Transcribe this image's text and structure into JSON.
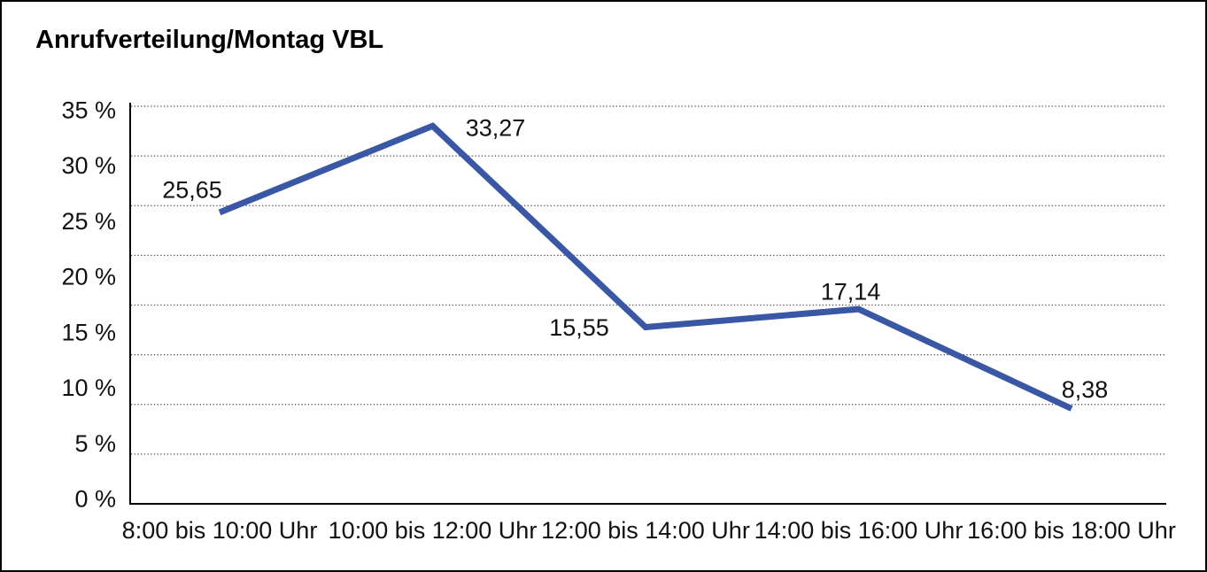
{
  "title": "Anrufverteilung/Montag VBL",
  "chart_data": {
    "type": "line",
    "title": "Anrufverteilung/Montag VBL",
    "categories": [
      "8:00 bis 10:00 Uhr",
      "10:00 bis 12:00 Uhr",
      "12:00 bis 14:00 Uhr",
      "14:00 bis 16:00 Uhr",
      "16:00 bis 18:00 Uhr"
    ],
    "values": [
      25.65,
      33.27,
      15.55,
      17.14,
      8.38
    ],
    "value_labels": [
      "25,65",
      "33,27",
      "15,55",
      "17,14",
      "8,38"
    ],
    "unit": "%",
    "ylim": [
      0,
      35
    ],
    "y_ticks": [
      {
        "value": 0,
        "label": "0 %"
      },
      {
        "value": 5,
        "label": "5 %"
      },
      {
        "value": 10,
        "label": "10 %"
      },
      {
        "value": 15,
        "label": "15 %"
      },
      {
        "value": 20,
        "label": "20 %"
      },
      {
        "value": 25,
        "label": "25 %"
      },
      {
        "value": 30,
        "label": "30 %"
      },
      {
        "value": 35,
        "label": "35 %"
      }
    ],
    "grid": "horizontal-dotted",
    "legend": "none",
    "line_color": "#3A57A5",
    "axis_color": "#000000",
    "grid_color": "#4a4a4a",
    "text_color": "#111111"
  }
}
